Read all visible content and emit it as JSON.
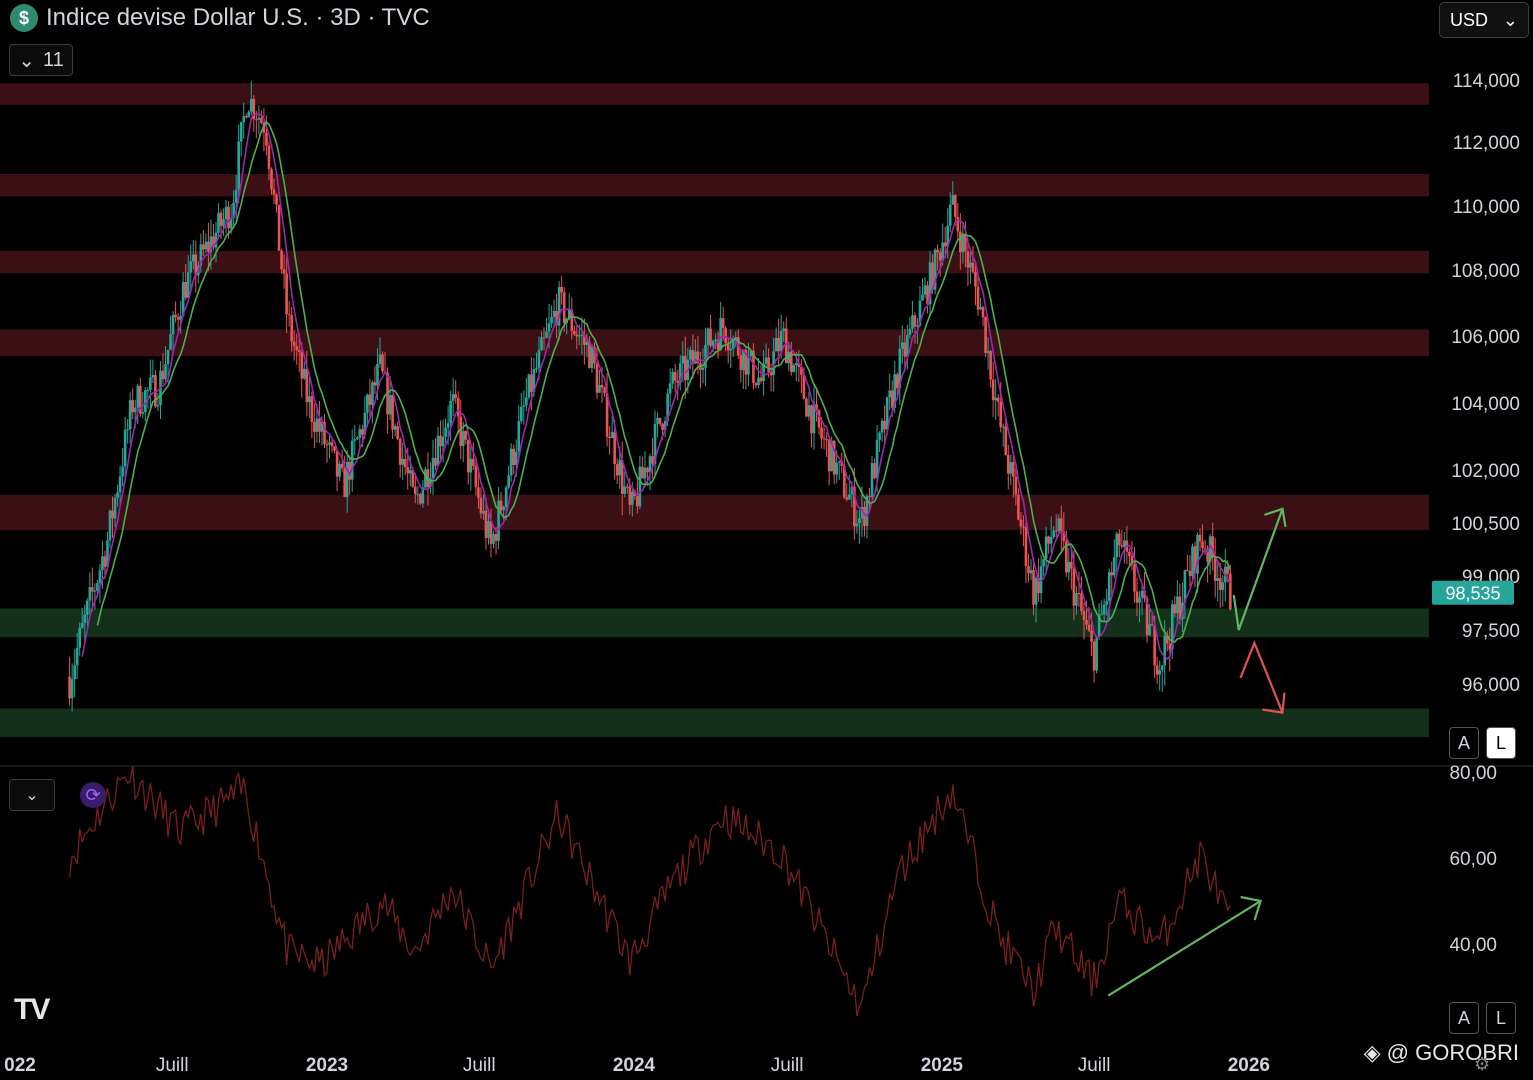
{
  "header": {
    "symbol_icon": "$",
    "title": "Indice devise Dollar U.S. · 3D · TVC",
    "indicators_count": "11",
    "currency": "USD"
  },
  "price_axis": {
    "ticks": [
      "114,000",
      "112,000",
      "110,000",
      "108,000",
      "106,000",
      "104,000",
      "102,000",
      "100,500",
      "99,000",
      "97,500",
      "96,000"
    ],
    "last_price": "98,535",
    "last_price_color": "#26a69a"
  },
  "rsi_axis": {
    "ticks": [
      "80,00",
      "60,00",
      "40,00"
    ]
  },
  "time_axis": {
    "labels": [
      "022",
      "Juill",
      "2023",
      "Juill",
      "2024",
      "Juill",
      "2025",
      "Juill",
      "2026"
    ]
  },
  "scale_buttons": {
    "auto": "A",
    "log": "L"
  },
  "watermark": "@ GOROBRI",
  "colors": {
    "up": "#26a69a",
    "down": "#ef5350",
    "ma_fast": "#9c27b0",
    "ma_slow": "#4caf50",
    "resistance_zone": "#3a1015",
    "support_zone": "#14301a",
    "rsi_line": "#7a1e1e",
    "arrow_up": "#5fb85f",
    "arrow_down": "#e05252"
  },
  "chart_data": {
    "type": "candlestick",
    "title": "Indice devise Dollar U.S. · 3D · TVC",
    "y_range": [
      94.8,
      115.0
    ],
    "x_range": [
      "2022-03",
      "2026-01"
    ],
    "price_path_anchors": [
      {
        "date": "2022-03-01",
        "value": 96.2
      },
      {
        "date": "2022-04-15",
        "value": 100.0
      },
      {
        "date": "2022-05-15",
        "value": 104.0
      },
      {
        "date": "2022-06-15",
        "value": 104.5
      },
      {
        "date": "2022-07-15",
        "value": 107.5
      },
      {
        "date": "2022-09-10",
        "value": 110.0
      },
      {
        "date": "2022-09-28",
        "value": 113.5
      },
      {
        "date": "2022-10-20",
        "value": 112.5
      },
      {
        "date": "2022-11-15",
        "value": 106.5
      },
      {
        "date": "2022-12-10",
        "value": 104.0
      },
      {
        "date": "2023-01-20",
        "value": 101.5
      },
      {
        "date": "2023-03-05",
        "value": 105.0
      },
      {
        "date": "2023-04-15",
        "value": 101.0
      },
      {
        "date": "2023-05-30",
        "value": 104.0
      },
      {
        "date": "2023-07-15",
        "value": 99.8
      },
      {
        "date": "2023-08-25",
        "value": 104.0
      },
      {
        "date": "2023-10-03",
        "value": 107.0
      },
      {
        "date": "2023-11-10",
        "value": 105.5
      },
      {
        "date": "2023-12-28",
        "value": 100.7
      },
      {
        "date": "2024-02-15",
        "value": 104.5
      },
      {
        "date": "2024-04-16",
        "value": 106.3
      },
      {
        "date": "2024-06-01",
        "value": 104.6
      },
      {
        "date": "2024-06-26",
        "value": 106.0
      },
      {
        "date": "2024-08-01",
        "value": 103.5
      },
      {
        "date": "2024-09-27",
        "value": 100.5
      },
      {
        "date": "2024-11-10",
        "value": 105.0
      },
      {
        "date": "2024-12-25",
        "value": 108.2
      },
      {
        "date": "2025-01-13",
        "value": 110.0
      },
      {
        "date": "2025-02-15",
        "value": 107.0
      },
      {
        "date": "2025-03-10",
        "value": 103.5
      },
      {
        "date": "2025-04-21",
        "value": 98.5
      },
      {
        "date": "2025-05-15",
        "value": 100.5
      },
      {
        "date": "2025-06-30",
        "value": 96.8
      },
      {
        "date": "2025-07-31",
        "value": 100.0
      },
      {
        "date": "2025-09-17",
        "value": 96.6
      },
      {
        "date": "2025-11-05",
        "value": 100.1
      },
      {
        "date": "2025-12-10",
        "value": 98.5
      }
    ],
    "moving_averages": [
      "fast (purple)",
      "slow (green)"
    ],
    "resistance_zones": [
      [
        113.2,
        113.9
      ],
      [
        110.3,
        111.0
      ],
      [
        107.9,
        108.6
      ],
      [
        105.4,
        106.2
      ],
      [
        100.3,
        101.3
      ]
    ],
    "support_zones": [
      [
        97.3,
        98.1
      ],
      [
        94.7,
        95.4
      ]
    ],
    "projection_arrows": [
      {
        "from": {
          "date": "2025-12-20",
          "value": 97.5
        },
        "to": {
          "date": "2026-02-10",
          "value": 100.9
        },
        "direction": "up"
      },
      {
        "from": {
          "date": "2025-12-22",
          "value": 97.0
        },
        "to": {
          "date": "2026-02-10",
          "value": 95.3
        },
        "direction": "down"
      }
    ],
    "rsi": {
      "y_range": [
        20,
        82
      ],
      "anchors": [
        {
          "date": "2022-03-01",
          "value": 60
        },
        {
          "date": "2022-04-10",
          "value": 72
        },
        {
          "date": "2022-05-10",
          "value": 80
        },
        {
          "date": "2022-07-10",
          "value": 66
        },
        {
          "date": "2022-09-25",
          "value": 76
        },
        {
          "date": "2022-11-15",
          "value": 38
        },
        {
          "date": "2022-12-25",
          "value": 35
        },
        {
          "date": "2023-03-08",
          "value": 50
        },
        {
          "date": "2023-04-15",
          "value": 38
        },
        {
          "date": "2023-05-30",
          "value": 53
        },
        {
          "date": "2023-07-15",
          "value": 34
        },
        {
          "date": "2023-10-03",
          "value": 70
        },
        {
          "date": "2023-12-28",
          "value": 36
        },
        {
          "date": "2024-02-15",
          "value": 54
        },
        {
          "date": "2024-04-16",
          "value": 70
        },
        {
          "date": "2024-06-25",
          "value": 61
        },
        {
          "date": "2024-09-27",
          "value": 25
        },
        {
          "date": "2024-11-10",
          "value": 56
        },
        {
          "date": "2025-01-13",
          "value": 76
        },
        {
          "date": "2025-03-10",
          "value": 42
        },
        {
          "date": "2025-04-21",
          "value": 29
        },
        {
          "date": "2025-05-15",
          "value": 44
        },
        {
          "date": "2025-06-30",
          "value": 31
        },
        {
          "date": "2025-07-31",
          "value": 50
        },
        {
          "date": "2025-09-17",
          "value": 40
        },
        {
          "date": "2025-11-05",
          "value": 61
        },
        {
          "date": "2025-12-10",
          "value": 45
        }
      ],
      "trendline": {
        "from": {
          "date": "2025-06-30",
          "value": 28
        },
        "to": {
          "date": "2026-01-15",
          "value": 50
        },
        "direction": "up"
      }
    }
  }
}
